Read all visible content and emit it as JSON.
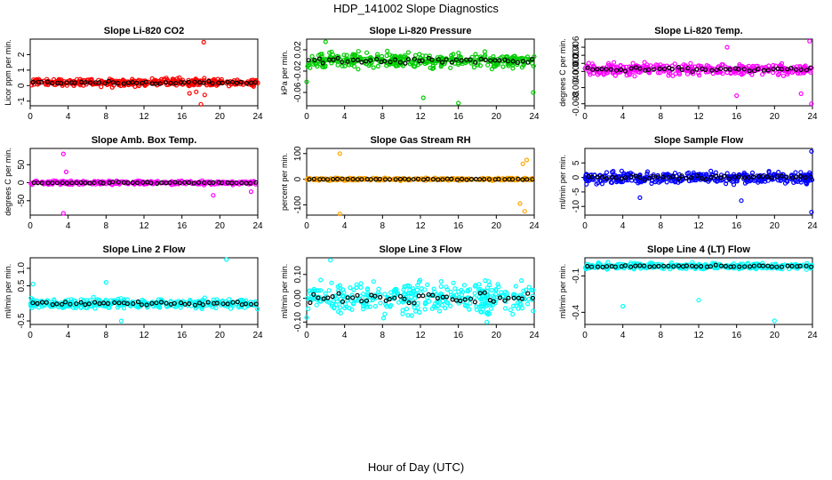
{
  "title": "HDP_141002  Slope Diagnostics",
  "xlabel": "Hour of Day (UTC)",
  "chart_data": [
    {
      "type": "scatter",
      "title": "Slope Li-820 CO2",
      "ylabel": "Licor ppm per min.",
      "color": "#ff0000",
      "xticks": [
        "0",
        "4",
        "8",
        "12",
        "16",
        "20",
        "24"
      ],
      "xlim": [
        0,
        24
      ],
      "yticks": [
        "-1",
        "0",
        "1",
        "2"
      ],
      "ylim": [
        -1.3,
        3.0
      ],
      "center": 0.2,
      "spread": 0.15,
      "outliers": [
        [
          18.3,
          2.8
        ],
        [
          16.8,
          -0.5
        ],
        [
          18.0,
          -1.2
        ],
        [
          17.5,
          -0.4
        ],
        [
          18.4,
          -0.6
        ]
      ],
      "seed": 1
    },
    {
      "type": "scatter",
      "title": "Slope Li-820 Pressure",
      "ylabel": "kPa per min.",
      "color": "#00cc00",
      "xticks": [
        "0",
        "4",
        "8",
        "12",
        "16",
        "20",
        "24"
      ],
      "xlim": [
        0,
        24
      ],
      "yticks": [
        "-0.06",
        "-0.02",
        "0.02"
      ],
      "ylim": [
        -0.085,
        0.04
      ],
      "center": 0.0,
      "spread": 0.008,
      "outliers": [
        [
          2.0,
          0.035
        ],
        [
          0.0,
          -0.04
        ],
        [
          16.0,
          -0.08
        ],
        [
          23.9,
          -0.06
        ],
        [
          12.3,
          -0.07
        ]
      ],
      "seed": 2
    },
    {
      "type": "scatter",
      "title": "Slope Li-820 Temp.",
      "ylabel": "degrees C per min.",
      "color": "#ff00ff",
      "xticks": [
        "0",
        "4",
        "8",
        "12",
        "16",
        "20",
        "24"
      ],
      "xlim": [
        0,
        24
      ],
      "yticks": [
        "-0.008",
        "-0.004",
        "0.000",
        "0.002",
        "0.004",
        "0.006"
      ],
      "ylim": [
        -0.0085,
        0.008
      ],
      "center": 0.0005,
      "spread": 0.0008,
      "outliers": [
        [
          23.9,
          -0.008
        ],
        [
          15.0,
          0.006
        ],
        [
          23.7,
          0.0075
        ],
        [
          16.0,
          -0.006
        ],
        [
          22.8,
          -0.0055
        ]
      ],
      "seed": 3
    },
    {
      "type": "scatter",
      "title": "Slope Amb. Box Temp.",
      "ylabel": "degrees C per min.",
      "color": "#ff00ff",
      "xticks": [
        "0",
        "4",
        "8",
        "12",
        "16",
        "20",
        "24"
      ],
      "xlim": [
        0,
        24
      ],
      "yticks": [
        "-50",
        "0",
        "50"
      ],
      "ylim": [
        -90,
        95
      ],
      "center": 0,
      "spread": 3,
      "outliers": [
        [
          3.5,
          80
        ],
        [
          3.5,
          -85
        ],
        [
          3.8,
          30
        ],
        [
          19.3,
          -35
        ],
        [
          23.3,
          -25
        ]
      ],
      "seed": 4
    },
    {
      "type": "scatter",
      "title": "Slope Gas Stream RH",
      "ylabel": "percent per min.",
      "color": "#ffa500",
      "xticks": [
        "0",
        "4",
        "8",
        "12",
        "16",
        "20",
        "24"
      ],
      "xlim": [
        0,
        24
      ],
      "yticks": [
        "-100",
        "0",
        "100"
      ],
      "ylim": [
        -140,
        120
      ],
      "center": 0,
      "spread": 3,
      "outliers": [
        [
          3.5,
          100
        ],
        [
          3.5,
          -135
        ],
        [
          23.2,
          75
        ],
        [
          22.5,
          -95
        ],
        [
          23.0,
          -125
        ],
        [
          22.8,
          60
        ]
      ],
      "seed": 5
    },
    {
      "type": "scatter",
      "title": "Slope Sample Flow",
      "ylabel": "ml/min per min.",
      "color": "#0000ff",
      "xticks": [
        "0",
        "4",
        "8",
        "12",
        "16",
        "20",
        "24"
      ],
      "xlim": [
        0,
        24
      ],
      "yticks": [
        "-10",
        "-5",
        "0",
        "5"
      ],
      "ylim": [
        -13,
        10
      ],
      "center": 0,
      "spread": 1.2,
      "outliers": [
        [
          23.9,
          -12
        ],
        [
          23.9,
          9
        ],
        [
          5.8,
          -7
        ],
        [
          16.5,
          -8
        ]
      ],
      "seed": 6
    },
    {
      "type": "scatter",
      "title": "Slope Line 2 Flow",
      "ylabel": "ml/min per min.",
      "color": "#00ffff",
      "xticks": [
        "0",
        "4",
        "8",
        "12",
        "16",
        "20",
        "24"
      ],
      "xlim": [
        0,
        24
      ],
      "yticks": [
        "-0.5",
        "0.5",
        "1.0"
      ],
      "ylim": [
        -0.6,
        1.3
      ],
      "center": 0.0,
      "spread": 0.08,
      "outliers": [
        [
          20.7,
          1.25
        ],
        [
          9.6,
          -0.5
        ],
        [
          0.3,
          0.55
        ],
        [
          8.0,
          0.6
        ]
      ],
      "seed": 7
    },
    {
      "type": "scatter",
      "title": "Slope Line 3 Flow",
      "ylabel": "ml/min per min.",
      "color": "#00ffff",
      "xticks": [
        "0",
        "4",
        "8",
        "12",
        "16",
        "20",
        "24"
      ],
      "xlim": [
        0,
        24
      ],
      "yticks": [
        "-0.10",
        "0.00",
        "0.10"
      ],
      "ylim": [
        -0.11,
        0.17
      ],
      "center": 0.0,
      "spread": 0.04,
      "outliers": [
        [
          2.5,
          0.16
        ],
        [
          19.0,
          -0.1
        ]
      ],
      "seed": 8
    },
    {
      "type": "scatter",
      "title": "Slope Line 4 (LT) Flow",
      "ylabel": "ml/min per min.",
      "color": "#00ffff",
      "xticks": [
        "0",
        "4",
        "8",
        "12",
        "16",
        "20",
        "24"
      ],
      "xlim": [
        0,
        24
      ],
      "yticks": [
        "-0.4",
        "-0.1"
      ],
      "ylim": [
        -0.5,
        0.05
      ],
      "center": -0.02,
      "spread": 0.015,
      "outliers": [
        [
          4.0,
          -0.35
        ],
        [
          12.0,
          -0.3
        ],
        [
          20.0,
          -0.47
        ]
      ],
      "seed": 9
    }
  ]
}
